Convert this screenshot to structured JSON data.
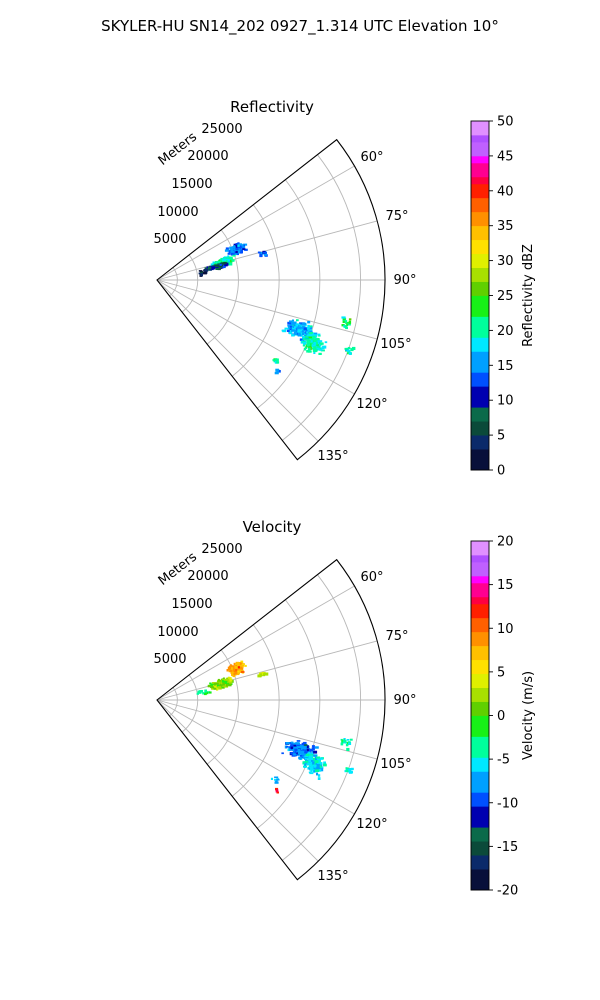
{
  "figure_title": "SKYLER-HU  SN14_202  0927_1.314 UTC Elevation 10°",
  "chart_data": [
    {
      "type": "polar-sector-scatter",
      "title": "Reflectivity",
      "radial_label": "Meters",
      "radial_ticks": [
        "5000",
        "10000",
        "15000",
        "20000",
        "25000"
      ],
      "radial_range": [
        0,
        28000
      ],
      "angle_ticks": [
        "60°",
        "75°",
        "90°",
        "105°",
        "120°",
        "135°"
      ],
      "angle_range": [
        52,
        142
      ],
      "grid": true,
      "colorbar": {
        "label": "Reflectivity dBZ",
        "min": 0,
        "max": 50,
        "ticks": [
          "0",
          "5",
          "10",
          "15",
          "20",
          "25",
          "30",
          "35",
          "40",
          "45",
          "50"
        ]
      },
      "clusters": [
        {
          "azimuth": 67.5,
          "range": 10400,
          "value": 14,
          "count": 110,
          "spread_az": 2.4,
          "spread_r": 700
        },
        {
          "azimuth": 73.5,
          "range": 8200,
          "value": 20,
          "count": 120,
          "spread_az": 2.0,
          "spread_r": 900
        },
        {
          "azimuth": 76.0,
          "range": 7400,
          "value": 9,
          "count": 70,
          "spread_az": 1.6,
          "spread_r": 900
        },
        {
          "azimuth": 79.0,
          "range": 5600,
          "value": 2,
          "count": 14,
          "spread_az": 2.2,
          "spread_r": 500
        },
        {
          "azimuth": 75.5,
          "range": 13200,
          "value": 12,
          "count": 10,
          "spread_az": 0.8,
          "spread_r": 400
        },
        {
          "azimuth": 109.0,
          "range": 18400,
          "value": 16,
          "count": 190,
          "spread_az": 2.2,
          "spread_r": 1200
        },
        {
          "azimuth": 112.0,
          "range": 20500,
          "value": 20,
          "count": 120,
          "spread_az": 2.2,
          "spread_r": 900
        },
        {
          "azimuth": 102.5,
          "range": 23600,
          "value": 22,
          "count": 16,
          "spread_az": 1.2,
          "spread_r": 500
        },
        {
          "azimuth": 110.0,
          "range": 24900,
          "value": 20,
          "count": 14,
          "spread_az": 0.8,
          "spread_r": 400
        },
        {
          "azimuth": 124.0,
          "range": 17400,
          "value": 20,
          "count": 8,
          "spread_az": 0.8,
          "spread_r": 400
        },
        {
          "azimuth": 127.0,
          "range": 18200,
          "value": 15,
          "count": 5,
          "spread_az": 0.5,
          "spread_r": 250
        }
      ]
    },
    {
      "type": "polar-sector-scatter",
      "title": "Velocity",
      "radial_label": "Meters",
      "radial_ticks": [
        "5000",
        "10000",
        "15000",
        "20000",
        "25000"
      ],
      "radial_range": [
        0,
        28000
      ],
      "angle_ticks": [
        "60°",
        "75°",
        "90°",
        "105°",
        "120°",
        "135°"
      ],
      "angle_range": [
        52,
        142
      ],
      "grid": true,
      "colorbar": {
        "label": "Velocity (m/s)",
        "min": -20,
        "max": 20,
        "ticks": [
          "-20",
          "-15",
          "-10",
          "-5",
          "0",
          "5",
          "10",
          "15",
          "20"
        ]
      },
      "clusters": [
        {
          "azimuth": 67.5,
          "range": 10400,
          "value": 8,
          "count": 120,
          "spread_az": 2.4,
          "spread_r": 700
        },
        {
          "azimuth": 74.5,
          "range": 8000,
          "value": 1,
          "count": 170,
          "spread_az": 2.4,
          "spread_r": 1000
        },
        {
          "azimuth": 79.0,
          "range": 5600,
          "value": -3,
          "count": 12,
          "spread_az": 2.0,
          "spread_r": 500
        },
        {
          "azimuth": 75.5,
          "range": 13200,
          "value": 3,
          "count": 10,
          "spread_az": 0.8,
          "spread_r": 400
        },
        {
          "azimuth": 109.0,
          "range": 18400,
          "value": -9,
          "count": 190,
          "spread_az": 2.2,
          "spread_r": 1200
        },
        {
          "azimuth": 112.0,
          "range": 20500,
          "value": -6,
          "count": 120,
          "spread_az": 2.2,
          "spread_r": 900
        },
        {
          "azimuth": 102.5,
          "range": 23600,
          "value": -4,
          "count": 16,
          "spread_az": 1.2,
          "spread_r": 500
        },
        {
          "azimuth": 110.0,
          "range": 24900,
          "value": -5,
          "count": 14,
          "spread_az": 0.8,
          "spread_r": 400
        },
        {
          "azimuth": 124.0,
          "range": 17400,
          "value": -6,
          "count": 8,
          "spread_az": 0.8,
          "spread_r": 400
        },
        {
          "azimuth": 127.0,
          "range": 18200,
          "value": 12,
          "count": 4,
          "spread_az": 0.5,
          "spread_r": 250
        }
      ]
    }
  ]
}
